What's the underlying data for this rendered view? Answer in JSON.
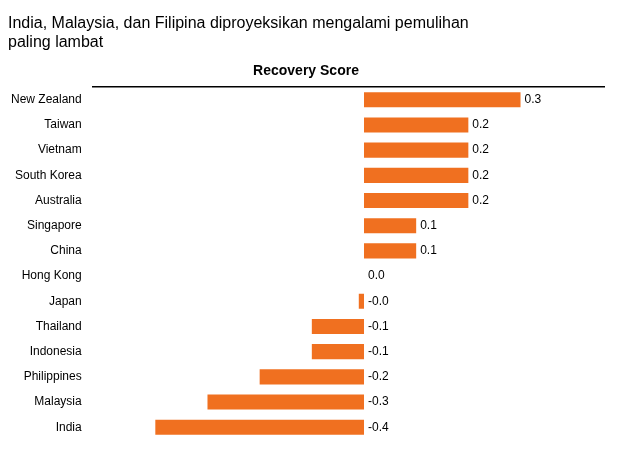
{
  "chart_data": {
    "type": "bar",
    "orientation": "horizontal",
    "title": "India, Malaysia, dan Filipina diproyeksikan mengalami pemulihan\npaling lambat",
    "subtitle": "Recovery Score",
    "categories": [
      "New Zealand",
      "Taiwan",
      "Vietnam",
      "South Korea",
      "Australia",
      "Singapore",
      "China",
      "Hong Kong",
      "Japan",
      "Thailand",
      "Indonesia",
      "Philippines",
      "Malaysia",
      "India"
    ],
    "values": [
      0.3,
      0.2,
      0.2,
      0.2,
      0.2,
      0.1,
      0.1,
      0.0,
      -0.01,
      -0.1,
      -0.1,
      -0.2,
      -0.3,
      -0.4
    ],
    "value_labels": [
      "0.3",
      "0.2",
      "0.2",
      "0.2",
      "0.2",
      "0.1",
      "0.1",
      "0.0",
      "-0.0",
      "-0.1",
      "-0.1",
      "-0.2",
      "-0.3",
      "-0.4"
    ],
    "color": "#F07020",
    "xlim": [
      -0.52,
      0.46
    ],
    "data_labels": true,
    "tick_labels": "y",
    "grid": false
  }
}
